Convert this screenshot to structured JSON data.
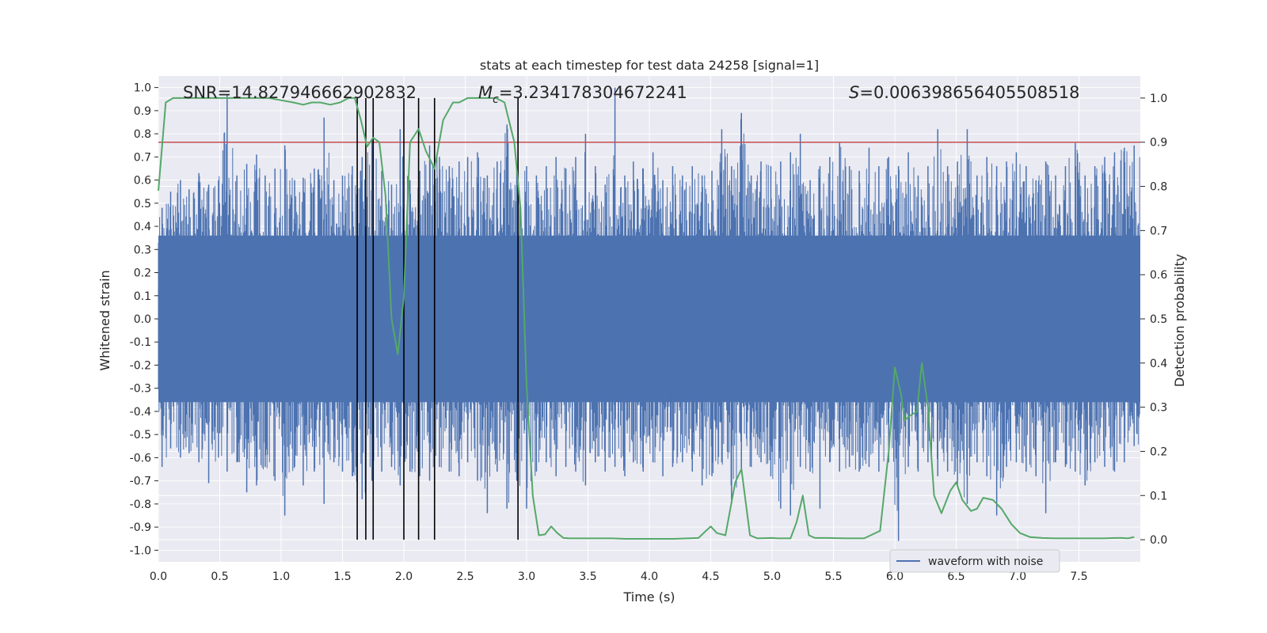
{
  "chart_data": {
    "type": "line",
    "title": "stats at each timestep for test data 24258 [signal=1]",
    "xlabel": "Time (s)",
    "ylabel": "Whitened strain",
    "y2label": "Detection probability",
    "xlim": [
      0.0,
      8.0
    ],
    "ylim": [
      -1.05,
      1.05
    ],
    "y2lim": [
      -0.05,
      1.05
    ],
    "x_ticks": [
      "0.0",
      "0.5",
      "1.0",
      "1.5",
      "2.0",
      "2.5",
      "3.0",
      "3.5",
      "4.0",
      "4.5",
      "5.0",
      "5.5",
      "6.0",
      "6.5",
      "7.0",
      "7.5"
    ],
    "x_tick_values": [
      0.0,
      0.5,
      1.0,
      1.5,
      2.0,
      2.5,
      3.0,
      3.5,
      4.0,
      4.5,
      5.0,
      5.5,
      6.0,
      6.5,
      7.0,
      7.5
    ],
    "y_ticks": [
      "1.0",
      "0.9",
      "0.8",
      "0.7",
      "0.6",
      "0.5",
      "0.4",
      "0.3",
      "0.2",
      "0.1",
      "0.0",
      "-0.1",
      "-0.2",
      "-0.3",
      "-0.4",
      "-0.5",
      "-0.6",
      "-0.7",
      "-0.8",
      "-0.9",
      "-1.0"
    ],
    "y_tick_values": [
      1.0,
      0.9,
      0.8,
      0.7,
      0.6,
      0.5,
      0.4,
      0.3,
      0.2,
      0.1,
      0.0,
      -0.1,
      -0.2,
      -0.3,
      -0.4,
      -0.5,
      -0.6,
      -0.7,
      -0.8,
      -0.9,
      -1.0
    ],
    "y2_ticks": [
      "1.0",
      "0.9",
      "0.8",
      "0.7",
      "0.6",
      "0.5",
      "0.4",
      "0.3",
      "0.2",
      "0.1",
      "0.0"
    ],
    "y2_tick_values": [
      1.0,
      0.9,
      0.8,
      0.7,
      0.6,
      0.5,
      0.4,
      0.3,
      0.2,
      0.1,
      0.0
    ],
    "annotations": {
      "snr": "SNR=14.827946662902832",
      "mc_symbol": "M",
      "mc_subscript": "c",
      "mc_value": "=3.234178304672241",
      "s_symbol": "S",
      "s_value": "=0.006398656405508518"
    },
    "legend": {
      "label": "waveform with noise",
      "position": "lower-right"
    },
    "threshold": {
      "value": 0.9,
      "axis": "y2",
      "color": "#c44e52"
    },
    "event_lines_x": [
      1.62,
      1.69,
      1.75,
      2.0,
      2.12,
      2.25,
      2.93
    ],
    "series": [
      {
        "name": "waveform with noise",
        "axis": "y",
        "color": "#4c72b0",
        "envelope_note": "dense noisy strain sampled over 0-8 s; sampled peaks listed",
        "peaks_x": [
          0.03,
          0.1,
          0.18,
          0.25,
          0.33,
          0.41,
          0.49,
          0.56,
          0.64,
          0.72,
          0.8,
          0.87,
          0.95,
          1.03,
          1.11,
          1.18,
          1.27,
          1.35,
          1.43,
          1.5,
          1.58,
          1.66,
          1.74,
          1.82,
          1.9,
          1.97,
          2.05,
          2.13,
          2.21,
          2.29,
          2.37,
          2.45,
          2.52,
          2.6,
          2.68,
          2.76,
          2.84,
          2.92,
          3.0,
          3.08,
          3.16,
          3.24,
          3.32,
          3.4,
          3.48,
          3.56,
          3.64,
          3.72,
          3.8,
          3.87,
          3.95,
          4.03,
          4.11,
          4.19,
          4.27,
          4.35,
          4.43,
          4.51,
          4.59,
          4.67,
          4.75,
          4.83,
          4.91,
          4.99,
          5.07,
          5.15,
          5.23,
          5.31,
          5.39,
          5.47,
          5.55,
          5.63,
          5.71,
          5.79,
          5.87,
          5.95,
          6.03,
          6.11,
          6.19,
          6.27,
          6.35,
          6.43,
          6.51,
          6.59,
          6.67,
          6.75,
          6.83,
          6.91,
          6.99,
          7.07,
          7.15,
          7.23,
          7.31,
          7.39,
          7.47,
          7.55,
          7.63,
          7.71,
          7.79,
          7.87,
          7.95
        ],
        "peaks_max": [
          0.48,
          0.55,
          0.6,
          0.56,
          0.63,
          0.58,
          0.6,
          0.97,
          0.62,
          0.67,
          0.71,
          0.62,
          0.65,
          0.75,
          0.6,
          0.61,
          0.65,
          0.87,
          0.6,
          0.62,
          0.66,
          0.7,
          0.78,
          0.64,
          0.58,
          0.82,
          0.6,
          0.64,
          0.75,
          0.7,
          0.66,
          0.68,
          0.7,
          0.72,
          0.62,
          0.68,
          0.84,
          0.66,
          0.66,
          0.62,
          0.66,
          0.7,
          0.65,
          0.7,
          0.8,
          0.66,
          0.58,
          1.0,
          0.62,
          0.68,
          0.65,
          0.72,
          0.6,
          0.66,
          0.62,
          0.66,
          0.62,
          0.64,
          0.82,
          0.66,
          0.89,
          0.62,
          0.68,
          0.66,
          0.68,
          0.72,
          0.8,
          0.6,
          0.66,
          0.7,
          0.76,
          0.66,
          0.64,
          0.74,
          0.66,
          0.7,
          0.66,
          0.72,
          0.62,
          0.66,
          0.82,
          0.66,
          0.68,
          0.82,
          0.62,
          0.7,
          0.66,
          0.68,
          0.72,
          0.66,
          0.6,
          0.68,
          0.62,
          0.66,
          0.76,
          0.62,
          0.66,
          0.7,
          0.72,
          0.74,
          0.75
        ],
        "peaks_min": [
          -0.64,
          -0.56,
          -0.6,
          -0.58,
          -0.62,
          -0.71,
          -0.6,
          -0.66,
          -0.62,
          -0.75,
          -0.72,
          -0.64,
          -0.7,
          -0.85,
          -0.64,
          -0.72,
          -0.66,
          -0.8,
          -0.62,
          -0.66,
          -0.68,
          -0.78,
          -0.7,
          -0.66,
          -0.64,
          -0.72,
          -0.66,
          -0.68,
          -0.7,
          -0.64,
          -0.66,
          -0.68,
          -0.62,
          -0.7,
          -0.84,
          -0.66,
          -0.82,
          -0.7,
          -0.82,
          -0.66,
          -0.62,
          -0.68,
          -0.64,
          -0.66,
          -0.72,
          -0.62,
          -0.66,
          -0.64,
          -0.68,
          -0.62,
          -0.66,
          -0.62,
          -0.68,
          -0.64,
          -0.62,
          -0.66,
          -0.72,
          -0.68,
          -0.62,
          -0.8,
          -0.66,
          -0.64,
          -0.62,
          -0.68,
          -0.82,
          -0.85,
          -0.64,
          -0.66,
          -0.82,
          -0.62,
          -0.66,
          -0.64,
          -0.66,
          -0.64,
          -0.66,
          -0.62,
          -0.96,
          -0.64,
          -0.66,
          -0.62,
          -0.68,
          -0.66,
          -0.72,
          -0.8,
          -0.62,
          -0.68,
          -0.85,
          -0.64,
          -0.62,
          -0.66,
          -0.68,
          -0.84,
          -0.62,
          -0.64,
          -0.66,
          -0.72,
          -0.62,
          -0.64,
          -0.66,
          -0.62,
          -0.55
        ]
      },
      {
        "name": "Detection probability",
        "axis": "y2",
        "color": "#55a868",
        "x": [
          0.0,
          0.06,
          0.12,
          0.2,
          0.3,
          0.4,
          0.5,
          0.6,
          0.7,
          0.8,
          0.9,
          1.0,
          1.1,
          1.18,
          1.25,
          1.32,
          1.4,
          1.48,
          1.55,
          1.6,
          1.65,
          1.7,
          1.75,
          1.8,
          1.85,
          1.9,
          1.95,
          2.0,
          2.05,
          2.12,
          2.18,
          2.25,
          2.32,
          2.4,
          2.45,
          2.52,
          2.58,
          2.65,
          2.75,
          2.82,
          2.9,
          2.95,
          3.0,
          3.05,
          3.1,
          3.15,
          3.2,
          3.25,
          3.3,
          3.35,
          3.45,
          3.55,
          3.7,
          3.8,
          4.0,
          4.2,
          4.4,
          4.5,
          4.55,
          4.62,
          4.7,
          4.75,
          4.82,
          4.88,
          5.0,
          5.05,
          5.15,
          5.2,
          5.25,
          5.3,
          5.35,
          5.45,
          5.6,
          5.75,
          5.88,
          5.95,
          6.0,
          6.05,
          6.08,
          6.12,
          6.18,
          6.22,
          6.27,
          6.32,
          6.38,
          6.45,
          6.5,
          6.55,
          6.62,
          6.67,
          6.72,
          6.8,
          6.87,
          6.95,
          7.02,
          7.1,
          7.2,
          7.3,
          7.4,
          7.55,
          7.7,
          7.8,
          7.85,
          7.9,
          7.95
        ],
        "y": [
          0.79,
          0.99,
          1.0,
          1.0,
          1.0,
          1.0,
          1.0,
          1.0,
          1.0,
          1.0,
          1.0,
          0.995,
          0.99,
          0.985,
          0.99,
          0.99,
          0.985,
          0.99,
          1.0,
          1.0,
          0.95,
          0.89,
          0.91,
          0.9,
          0.78,
          0.5,
          0.42,
          0.55,
          0.9,
          0.93,
          0.88,
          0.84,
          0.95,
          0.99,
          0.99,
          1.0,
          1.0,
          1.0,
          1.0,
          0.99,
          0.9,
          0.75,
          0.35,
          0.1,
          0.01,
          0.012,
          0.03,
          0.015,
          0.004,
          0.003,
          0.003,
          0.003,
          0.003,
          0.002,
          0.002,
          0.002,
          0.004,
          0.03,
          0.015,
          0.01,
          0.13,
          0.16,
          0.01,
          0.003,
          0.004,
          0.003,
          0.003,
          0.04,
          0.1,
          0.01,
          0.004,
          0.004,
          0.003,
          0.003,
          0.02,
          0.2,
          0.39,
          0.33,
          0.27,
          0.28,
          0.29,
          0.4,
          0.3,
          0.1,
          0.06,
          0.11,
          0.13,
          0.09,
          0.065,
          0.07,
          0.095,
          0.09,
          0.07,
          0.035,
          0.015,
          0.006,
          0.004,
          0.003,
          0.003,
          0.003,
          0.003,
          0.004,
          0.004,
          0.003,
          0.006
        ]
      }
    ]
  }
}
